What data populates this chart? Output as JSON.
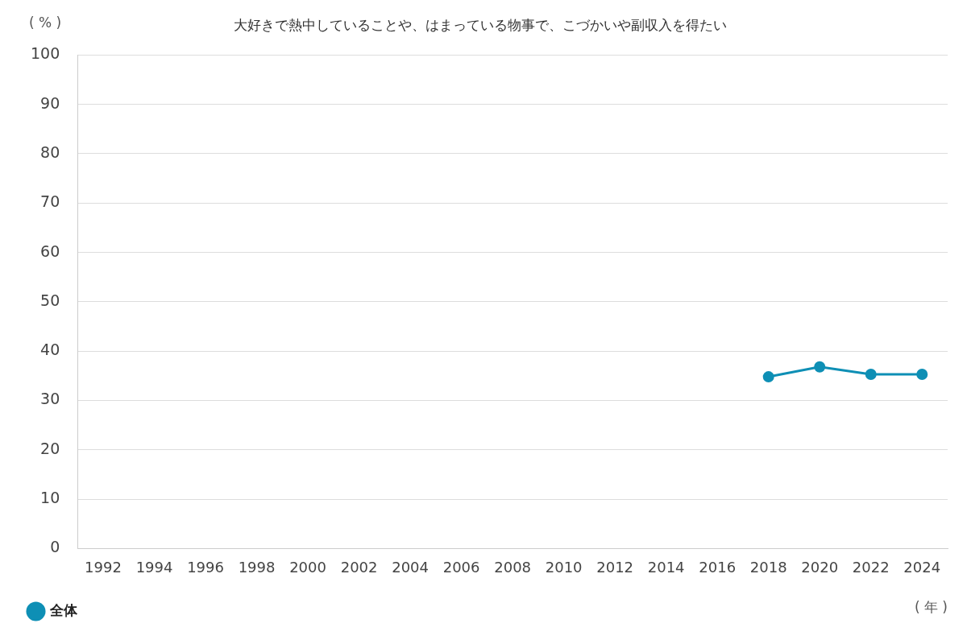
{
  "chart_data": {
    "type": "line",
    "title": "大好きで熱中していることや、はまっている物事で、こづかいや副収入を得たい",
    "ylabel": "( % )",
    "xlabel": "( 年 )",
    "categories": [
      "1992",
      "1994",
      "1996",
      "1998",
      "2000",
      "2002",
      "2004",
      "2006",
      "2008",
      "2010",
      "2012",
      "2014",
      "2016",
      "2018",
      "2020",
      "2022",
      "2024"
    ],
    "series": [
      {
        "name": "全体",
        "color": "#0e8fb5",
        "values": [
          null,
          null,
          null,
          null,
          null,
          null,
          null,
          null,
          null,
          null,
          null,
          null,
          null,
          34.8,
          36.8,
          35.3,
          35.3
        ]
      }
    ],
    "ylim": [
      0,
      100
    ],
    "yticks": [
      0,
      10,
      20,
      30,
      40,
      50,
      60,
      70,
      80,
      90,
      100
    ],
    "grid": "y",
    "legend": "bottom left",
    "marker": "circle",
    "line_style": "solid"
  }
}
